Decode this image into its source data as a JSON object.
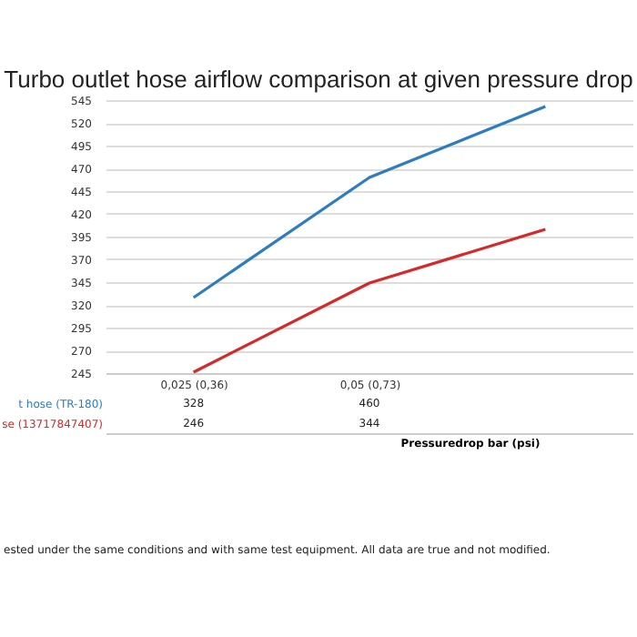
{
  "chart_data": {
    "type": "line",
    "title": "Turbo outlet hose airflow comparison at given pressure drop",
    "xlabel": "Pressuredrop bar (psi)",
    "categories": [
      "0,025 (0,36)",
      "0,05 (0,73)",
      null
    ],
    "series": [
      {
        "name": "t hose (TR-180)",
        "color": "#2e7dc0",
        "values": [
          328,
          460,
          538
        ],
        "value_labels": [
          "328",
          "460",
          null
        ]
      },
      {
        "name": "se (13717847407)",
        "color": "#d42a2a",
        "values": [
          246,
          344,
          403
        ],
        "value_labels": [
          "246",
          "344",
          null
        ]
      }
    ],
    "ylim": [
      245,
      545
    ],
    "yticks": [
      245,
      270,
      295,
      320,
      345,
      370,
      395,
      420,
      445,
      470,
      495,
      520,
      545
    ],
    "grid": "y",
    "marker": "none",
    "line_style": "solid",
    "annotations": [
      "ested under the same conditions and with same test equipment. All data are true and not modified."
    ]
  }
}
